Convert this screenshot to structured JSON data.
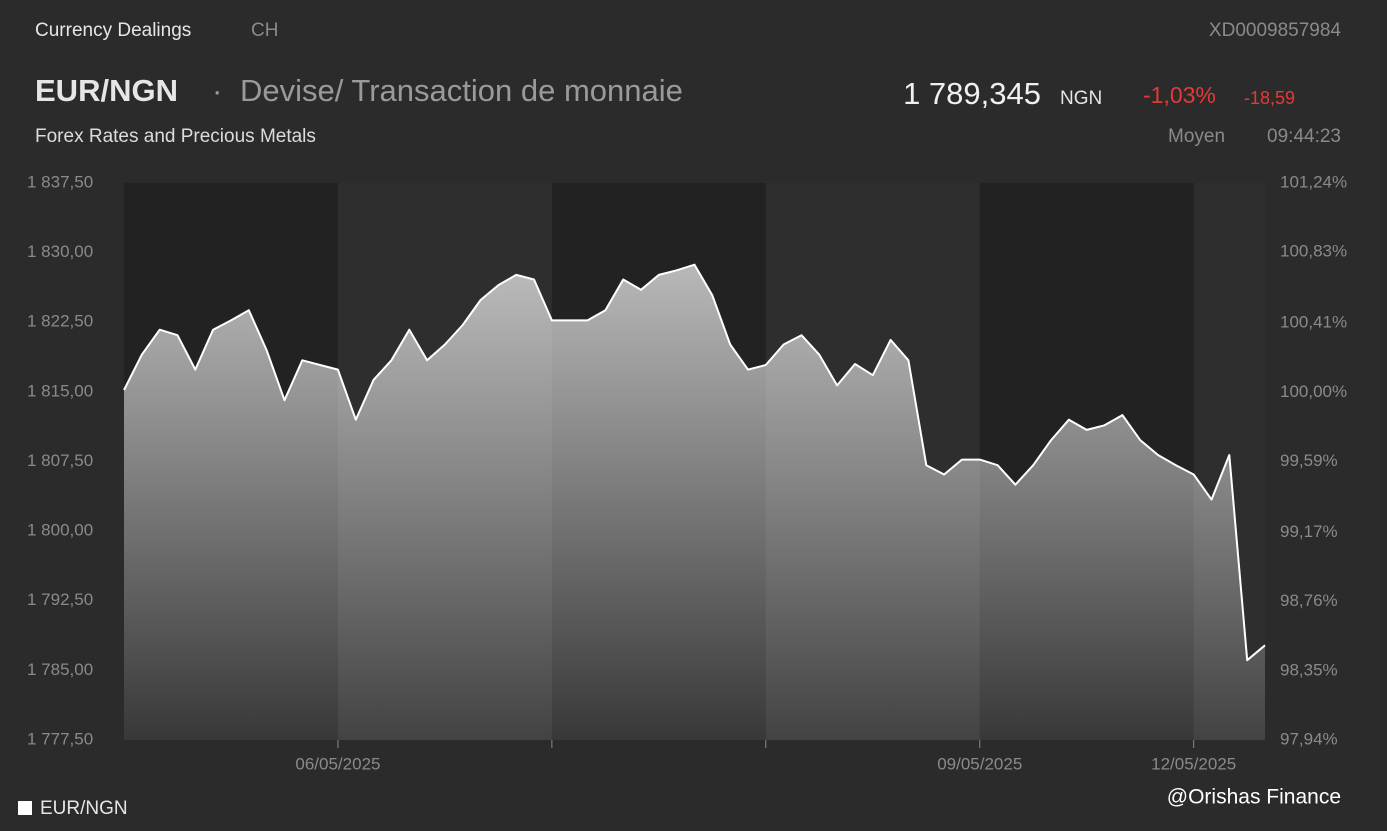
{
  "header": {
    "section": "Currency Dealings",
    "market": "CH",
    "isin": "XD0009857984",
    "pair": "EUR/NGN",
    "separator": "·",
    "description": "Devise/ Transaction de monnaie",
    "price": "1 789,345",
    "currency": "NGN",
    "change_pct": "-1,03%",
    "change_abs": "-18,59",
    "category": "Forex Rates and Precious Metals",
    "price_type": "Moyen",
    "time": "09:44:23",
    "watermark": "@Orishas Finance"
  },
  "chart_data": {
    "type": "area",
    "categories": [
      null,
      null,
      null,
      null,
      null,
      null,
      null,
      null,
      null,
      null,
      null,
      null,
      "06/05/2025",
      null,
      null,
      null,
      null,
      null,
      null,
      null,
      null,
      null,
      null,
      null,
      null,
      null,
      null,
      null,
      null,
      null,
      null,
      null,
      null,
      null,
      null,
      null,
      null,
      null,
      null,
      null,
      null,
      null,
      null,
      null,
      null,
      null,
      null,
      null,
      "09/05/2025",
      null,
      null,
      null,
      null,
      null,
      null,
      null,
      null,
      null,
      null,
      null,
      "12/05/2025",
      null,
      null,
      null,
      null
    ],
    "xticks": [
      12,
      24,
      36,
      48,
      60
    ],
    "series": [
      {
        "name": "EUR/NGN",
        "color": "#ffffff",
        "values": [
          1815.2,
          1819.0,
          1821.7,
          1821.1,
          1817.4,
          1821.7,
          1822.7,
          1823.8,
          1819.5,
          1814.1,
          1818.4,
          1817.9,
          1817.4,
          1812.0,
          1816.3,
          1818.4,
          1821.7,
          1818.4,
          1820.1,
          1822.2,
          1824.9,
          1826.5,
          1827.6,
          1827.1,
          1822.7,
          1822.7,
          1822.7,
          1823.8,
          1827.1,
          1826.0,
          1827.6,
          1828.1,
          1828.7,
          1825.4,
          1820.1,
          1817.4,
          1817.9,
          1820.1,
          1821.1,
          1819.0,
          1815.7,
          1818.0,
          1816.8,
          1820.6,
          1818.4,
          1807.1,
          1806.1,
          1807.7,
          1807.7,
          1807.1,
          1805.0,
          1807.1,
          1809.8,
          1812.0,
          1810.9,
          1811.4,
          1812.5,
          1809.8,
          1808.2,
          1807.1,
          1806.1,
          1803.4,
          1808.2,
          1786.1,
          1787.7
        ]
      }
    ],
    "ylim": [
      1777.5,
      1837.5
    ],
    "yticks": [
      {
        "value": 1837.5,
        "label": "1 837,50"
      },
      {
        "value": 1830,
        "label": "1 830,00"
      },
      {
        "value": 1822.5,
        "label": "1 822,50"
      },
      {
        "value": 1815,
        "label": "1 815,00"
      },
      {
        "value": 1807.5,
        "label": "1 807,50"
      },
      {
        "value": 1800,
        "label": "1 800,00"
      },
      {
        "value": 1792.5,
        "label": "1 792,50"
      },
      {
        "value": 1785,
        "label": "1 785,00"
      },
      {
        "value": 1777.5,
        "label": "1 777,50"
      }
    ],
    "y2lim": [
      97.94,
      101.24
    ],
    "y2ticks": [
      {
        "value": 101.24,
        "label": "101,24%"
      },
      {
        "value": 100.83,
        "label": "100,83%"
      },
      {
        "value": 100.41,
        "label": "100,41%"
      },
      {
        "value": 100,
        "label": "100,00%"
      },
      {
        "value": 99.59,
        "label": "99,59%"
      },
      {
        "value": 99.17,
        "label": "99,17%"
      },
      {
        "value": 98.76,
        "label": "98,76%"
      },
      {
        "value": 98.35,
        "label": "98,35%"
      },
      {
        "value": 97.94,
        "label": "97,94%"
      }
    ],
    "legend": "bottom-left"
  }
}
